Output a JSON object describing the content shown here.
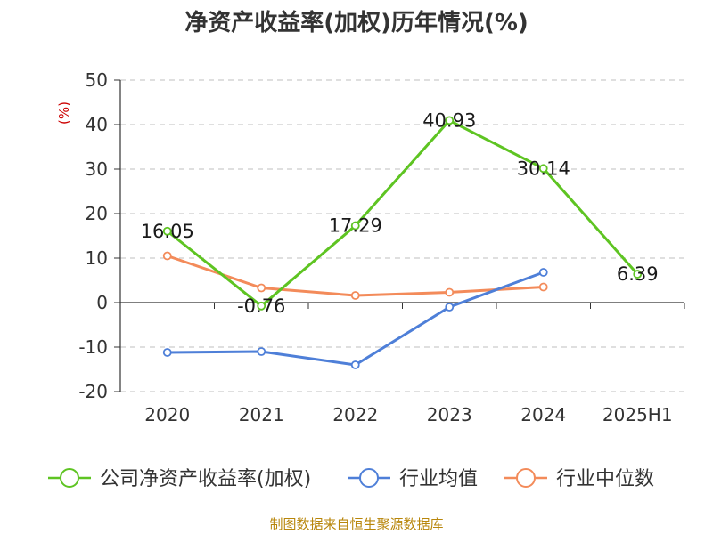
{
  "chart_data": {
    "type": "line",
    "title": "净资产收益率(加权)历年情况(%)",
    "ylabel": "(%)",
    "categories": [
      "2020",
      "2021",
      "2022",
      "2023",
      "2024",
      "2025H1"
    ],
    "ylim": [
      -20,
      50
    ],
    "yticks": [
      -20,
      -10,
      0,
      10,
      20,
      30,
      40,
      50
    ],
    "grid": true,
    "legend_position": "bottom",
    "series": [
      {
        "name": "公司净资产收益率(加权)",
        "color": "#5ec422",
        "values": [
          16.05,
          -0.76,
          17.29,
          40.93,
          30.14,
          6.39
        ],
        "labels": [
          "16.05",
          "-0.76",
          "17.29",
          "40.93",
          "30.14",
          "6.39"
        ]
      },
      {
        "name": "行业均值",
        "color": "#4e7fd8",
        "values": [
          -11.2,
          -11.0,
          -14.0,
          -1.0,
          6.8,
          null
        ]
      },
      {
        "name": "行业中位数",
        "color": "#f38b5a",
        "values": [
          10.5,
          3.3,
          1.6,
          2.3,
          3.5,
          null
        ]
      }
    ]
  },
  "source_note": "制图数据来自恒生聚源数据库"
}
